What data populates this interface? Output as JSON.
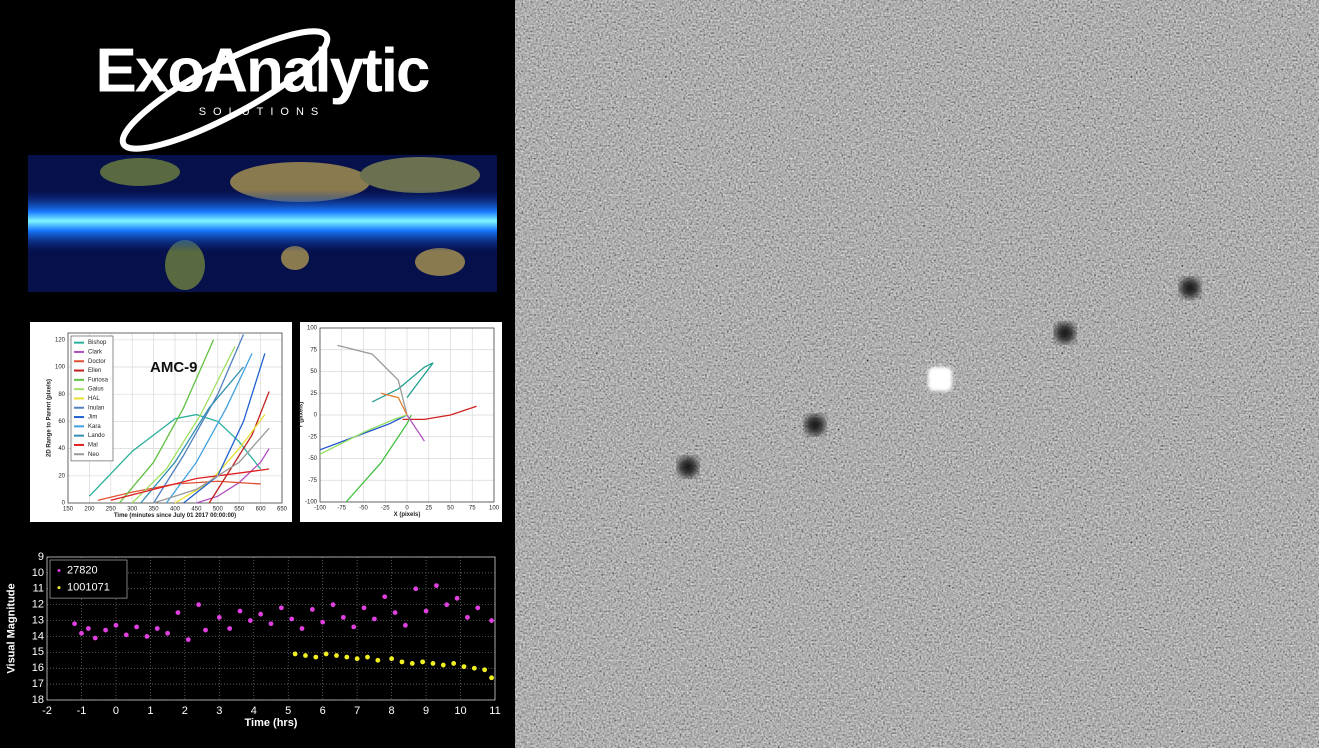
{
  "logo": {
    "name": "ExoAnalytic",
    "tagline": "SOLUTIONS"
  },
  "chart_data": [
    {
      "type": "line",
      "title": "AMC-9",
      "x_label": "Time (minutes since July 01 2017 00:00:00)",
      "y_label": "2D Range to Parent (pixels)",
      "xlim": [
        150,
        650
      ],
      "xticks": [
        150,
        200,
        250,
        300,
        350,
        400,
        450,
        500,
        550,
        600,
        650
      ],
      "ylim": [
        0,
        125
      ],
      "yticks": [
        0,
        20,
        40,
        60,
        80,
        100,
        120
      ],
      "grid": true,
      "legend": "upper-left",
      "series": [
        {
          "name": "Bishop",
          "color": "#2ab09a",
          "x": [
            200,
            300,
            400,
            450,
            500,
            550,
            600
          ],
          "values": [
            5,
            38,
            62,
            65,
            60,
            45,
            25
          ]
        },
        {
          "name": "Clark",
          "color": "#b050c0",
          "x": [
            450,
            500,
            550,
            600,
            620
          ],
          "values": [
            0,
            5,
            15,
            30,
            40
          ]
        },
        {
          "name": "Doctor",
          "color": "#e05030",
          "x": [
            220,
            300,
            400,
            500,
            600
          ],
          "values": [
            2,
            8,
            14,
            16,
            14
          ]
        },
        {
          "name": "Ellen",
          "color": "#c02020",
          "x": [
            480,
            530,
            580,
            620
          ],
          "values": [
            0,
            25,
            50,
            82
          ]
        },
        {
          "name": "Furiosa",
          "color": "#60c040",
          "x": [
            270,
            350,
            420,
            490
          ],
          "values": [
            0,
            30,
            70,
            120
          ]
        },
        {
          "name": "Gaius",
          "color": "#a0e060",
          "x": [
            300,
            380,
            460,
            540
          ],
          "values": [
            0,
            25,
            65,
            115
          ]
        },
        {
          "name": "HAL",
          "color": "#e8e030",
          "x": [
            400,
            480,
            550,
            610
          ],
          "values": [
            0,
            15,
            40,
            65
          ]
        },
        {
          "name": "Inulan",
          "color": "#5080c0",
          "x": [
            350,
            420,
            500,
            560
          ],
          "values": [
            0,
            35,
            80,
            124
          ]
        },
        {
          "name": "Jim",
          "color": "#2060d0",
          "x": [
            420,
            500,
            560,
            610
          ],
          "values": [
            0,
            20,
            60,
            110
          ]
        },
        {
          "name": "Kara",
          "color": "#40a0e0",
          "x": [
            380,
            450,
            520,
            580
          ],
          "values": [
            0,
            30,
            70,
            110
          ]
        },
        {
          "name": "Lando",
          "color": "#3090b0",
          "x": [
            320,
            400,
            480,
            560
          ],
          "values": [
            0,
            30,
            70,
            100
          ]
        },
        {
          "name": "Mal",
          "color": "#e02020",
          "x": [
            250,
            350,
            450,
            550,
            620
          ],
          "values": [
            2,
            10,
            18,
            22,
            25
          ]
        },
        {
          "name": "Neo",
          "color": "#999999",
          "x": [
            350,
            450,
            550,
            620
          ],
          "values": [
            0,
            10,
            30,
            55
          ]
        }
      ]
    },
    {
      "type": "line",
      "x_label": "X (pixels)",
      "y_label": "Y (pixels)",
      "xlim": [
        -100,
        100
      ],
      "xticks": [
        -100,
        -75,
        -50,
        -25,
        0,
        25,
        50,
        75,
        100
      ],
      "ylim": [
        -100,
        100
      ],
      "yticks": [
        -100,
        -75,
        -50,
        -25,
        0,
        25,
        50,
        75,
        100
      ],
      "grid": true,
      "series": [
        {
          "color": "#d02020",
          "x": [
            -5,
            20,
            50,
            80
          ],
          "values": [
            -5,
            -5,
            0,
            10
          ]
        },
        {
          "color": "#2050d0",
          "x": [
            -100,
            -60,
            -20,
            0
          ],
          "values": [
            -40,
            -25,
            -10,
            0
          ]
        },
        {
          "color": "#40c040",
          "x": [
            -70,
            -30,
            0,
            5
          ],
          "values": [
            -100,
            -55,
            -10,
            0
          ]
        },
        {
          "color": "#20a090",
          "x": [
            -40,
            -10,
            20,
            30,
            0
          ],
          "values": [
            15,
            30,
            55,
            60,
            20
          ]
        },
        {
          "color": "#b050c0",
          "x": [
            0,
            10,
            20
          ],
          "values": [
            0,
            -15,
            -30
          ]
        },
        {
          "color": "#999999",
          "x": [
            -80,
            -40,
            -10,
            0
          ],
          "values": [
            80,
            70,
            40,
            0
          ]
        },
        {
          "color": "#90e060",
          "x": [
            -100,
            -50,
            -15,
            0
          ],
          "values": [
            -45,
            -20,
            -5,
            0
          ]
        },
        {
          "color": "#e08030",
          "x": [
            -30,
            -10,
            0
          ],
          "values": [
            25,
            20,
            0
          ]
        }
      ]
    },
    {
      "type": "scatter",
      "x_label": "Time (hrs)",
      "y_label": "Visual Magnitude",
      "xlim": [
        -2,
        11
      ],
      "xticks": [
        -2,
        -1,
        0,
        1,
        2,
        3,
        4,
        5,
        6,
        7,
        8,
        9,
        10,
        11
      ],
      "ylim": [
        9,
        18
      ],
      "y_inverted": true,
      "yticks": [
        9,
        10,
        11,
        12,
        13,
        14,
        15,
        16,
        17,
        18
      ],
      "grid": true,
      "legend": "upper-left",
      "series": [
        {
          "name": "27820",
          "color": "#e040e0",
          "x": [
            -1.2,
            -1.0,
            -0.8,
            -0.6,
            -0.3,
            0.0,
            0.3,
            0.6,
            0.9,
            1.2,
            1.5,
            1.8,
            2.1,
            2.4,
            2.6,
            3.0,
            3.3,
            3.6,
            3.9,
            4.2,
            4.5,
            4.8,
            5.1,
            5.4,
            5.7,
            6.0,
            6.3,
            6.6,
            6.9,
            7.2,
            7.5,
            7.8,
            8.1,
            8.4,
            8.7,
            9.0,
            9.3,
            9.6,
            9.9,
            10.2,
            10.5,
            10.9
          ],
          "values": [
            13.2,
            13.8,
            13.5,
            14.1,
            13.6,
            13.3,
            13.9,
            13.4,
            14.0,
            13.5,
            13.8,
            12.5,
            14.2,
            12.0,
            13.6,
            12.8,
            13.5,
            12.4,
            13.0,
            12.6,
            13.2,
            12.2,
            12.9,
            13.5,
            12.3,
            13.1,
            12.0,
            12.8,
            13.4,
            12.2,
            12.9,
            11.5,
            12.5,
            13.3,
            11.0,
            12.4,
            10.8,
            12.0,
            11.6,
            12.8,
            12.2,
            13.0
          ]
        },
        {
          "name": "1001071",
          "color": "#f0f020",
          "x": [
            5.2,
            5.5,
            5.8,
            6.1,
            6.4,
            6.7,
            7.0,
            7.3,
            7.6,
            8.0,
            8.3,
            8.6,
            8.9,
            9.2,
            9.5,
            9.8,
            10.1,
            10.4,
            10.7,
            10.9
          ],
          "values": [
            15.1,
            15.2,
            15.3,
            15.1,
            15.2,
            15.3,
            15.4,
            15.3,
            15.5,
            15.4,
            15.6,
            15.7,
            15.6,
            15.7,
            15.8,
            15.7,
            15.9,
            16.0,
            16.1,
            16.6
          ]
        }
      ]
    }
  ]
}
